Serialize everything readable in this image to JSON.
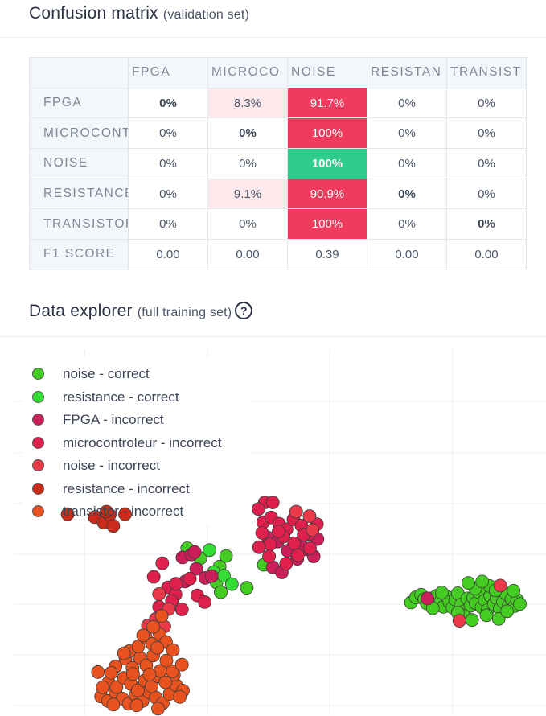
{
  "confusion_matrix": {
    "title": "Confusion matrix",
    "subtitle": "(validation set)",
    "columns": [
      "FPGA",
      "MICROCO",
      "NOISE",
      "RESISTAN",
      "TRANSIST"
    ],
    "rows": [
      {
        "label": "FPGA",
        "cells": [
          "0%",
          "8.3%",
          "91.7%",
          "0%",
          "0%"
        ]
      },
      {
        "label": "MICROCONT",
        "cells": [
          "0%",
          "0%",
          "100%",
          "0%",
          "0%"
        ]
      },
      {
        "label": "NOISE",
        "cells": [
          "0%",
          "0%",
          "100%",
          "0%",
          "0%"
        ]
      },
      {
        "label": "RESISTANCE",
        "cells": [
          "0%",
          "9.1%",
          "90.9%",
          "0%",
          "0%"
        ]
      },
      {
        "label": "TRANSISTOR",
        "cells": [
          "0%",
          "0%",
          "100%",
          "0%",
          "0%"
        ]
      }
    ],
    "f1_label": "F1 SCORE",
    "f1_scores": [
      "0.00",
      "0.00",
      "0.39",
      "0.00",
      "0.00"
    ],
    "colors": {
      "highlight_red": "#ee3b5e",
      "highlight_green": "#2ecc8a",
      "light_red": "#fde8ec",
      "header_bg": "#f3f6fa"
    }
  },
  "data_explorer": {
    "title": "Data explorer",
    "subtitle": "(full training set)",
    "help_icon": "question-circle-icon",
    "help_glyph": "?",
    "legend": [
      {
        "label": "noise - correct",
        "color": "#44cc22"
      },
      {
        "label": "resistance - correct",
        "color": "#33dd33"
      },
      {
        "label": "FPGA - incorrect",
        "color": "#cc1e5a"
      },
      {
        "label": "microcontroleur - incorrect",
        "color": "#e0204c"
      },
      {
        "label": "noise - incorrect",
        "color": "#ea3a4a"
      },
      {
        "label": "resistance - incorrect",
        "color": "#cc2a1a"
      },
      {
        "label": "transistor - incorrect",
        "color": "#e8521f"
      }
    ]
  },
  "chart_data": {
    "type": "scatter",
    "title": "",
    "xlabel": "",
    "ylabel": "",
    "grid": true,
    "legend_placement": "top-left",
    "xlim": [
      0,
      100
    ],
    "ylim": [
      0,
      100
    ],
    "series": [
      {
        "name": "noise - correct",
        "color": "#44cc22",
        "points": [
          [
            74.6,
            30.8
          ],
          [
            75.5,
            32.2
          ],
          [
            76.5,
            32.9
          ],
          [
            77.1,
            31.7
          ],
          [
            77.6,
            30.5
          ],
          [
            78.3,
            31.9
          ],
          [
            78.9,
            30.2
          ],
          [
            79.4,
            32.6
          ],
          [
            80.2,
            31.1
          ],
          [
            80.7,
            29.6
          ],
          [
            81.3,
            32.4
          ],
          [
            81.8,
            30.9
          ],
          [
            82.4,
            29.4
          ],
          [
            82.9,
            31.6
          ],
          [
            83.4,
            33.3
          ],
          [
            84.0,
            30.2
          ],
          [
            84.6,
            28.4
          ],
          [
            85.2,
            31.9
          ],
          [
            85.8,
            29.9
          ],
          [
            86.3,
            32.1
          ],
          [
            86.8,
            30.6
          ],
          [
            87.4,
            33.6
          ],
          [
            87.9,
            29.5
          ],
          [
            88.5,
            31.4
          ],
          [
            89.0,
            28.7
          ],
          [
            89.5,
            32.6
          ],
          [
            90.2,
            30.3
          ],
          [
            90.7,
            32.0
          ],
          [
            91.3,
            29.1
          ],
          [
            91.9,
            31.0
          ],
          [
            92.4,
            33.3
          ],
          [
            93.0,
            30.0
          ],
          [
            93.5,
            31.7
          ],
          [
            94.1,
            29.8
          ],
          [
            94.6,
            31.5
          ],
          [
            95.1,
            30.4
          ],
          [
            84.5,
            27.2
          ],
          [
            86.1,
            26.0
          ],
          [
            88.8,
            27.3
          ],
          [
            91.1,
            26.3
          ],
          [
            92.7,
            28.4
          ],
          [
            86.7,
            34.6
          ],
          [
            89.4,
            35.3
          ],
          [
            88.0,
            36.5
          ],
          [
            90.5,
            34.1
          ],
          [
            83.4,
            28.0
          ],
          [
            85.4,
            36.1
          ],
          [
            93.9,
            34.0
          ],
          [
            80.4,
            33.5
          ],
          [
            78.7,
            29.2
          ],
          [
            32.5,
            45.6
          ],
          [
            35.0,
            42.9
          ],
          [
            38.0,
            36.3
          ],
          [
            38.6,
            40.6
          ],
          [
            39.8,
            43.5
          ],
          [
            43.7,
            34.8
          ],
          [
            38.8,
            33.6
          ],
          [
            46.9,
            41.1
          ]
        ]
      },
      {
        "name": "resistance - correct",
        "color": "#33dd33",
        "points": [
          [
            36.7,
            45.1
          ],
          [
            37.5,
            39.1
          ],
          [
            39.4,
            38.1
          ],
          [
            40.9,
            35.8
          ]
        ]
      },
      {
        "name": "FPGA - incorrect",
        "color": "#cc1e5a",
        "points": [
          [
            31.6,
            43.1
          ],
          [
            33.3,
            43.9
          ],
          [
            34.2,
            40.0
          ],
          [
            35.9,
            37.5
          ],
          [
            37.1,
            38.0
          ],
          [
            33.9,
            44.6
          ],
          [
            32.1,
            36.5
          ],
          [
            47.7,
            48.5
          ],
          [
            49.5,
            47.4
          ],
          [
            51.4,
            44.9
          ],
          [
            53.2,
            42.7
          ],
          [
            55.0,
            45.3
          ],
          [
            48.6,
            40.4
          ],
          [
            50.3,
            39.0
          ],
          [
            54.1,
            46.1
          ],
          [
            56.3,
            43.4
          ],
          [
            57.0,
            48.1
          ],
          [
            77.7,
            31.9
          ]
        ]
      },
      {
        "name": "microcontroleur - incorrect",
        "color": "#e0204c",
        "points": [
          [
            26.2,
            37.8
          ],
          [
            27.8,
            41.5
          ],
          [
            28.9,
            34.9
          ],
          [
            30.3,
            33.0
          ],
          [
            34.4,
            32.7
          ],
          [
            35.8,
            30.9
          ],
          [
            31.5,
            28.9
          ],
          [
            29.6,
            31.2
          ],
          [
            27.2,
            29.6
          ],
          [
            33.0,
            37.3
          ],
          [
            30.4,
            35.9
          ],
          [
            46.8,
            52.7
          ],
          [
            48.3,
            54.0
          ],
          [
            49.8,
            52.3
          ],
          [
            51.2,
            50.8
          ],
          [
            52.5,
            53.5
          ],
          [
            54.0,
            51.8
          ],
          [
            55.4,
            49.5
          ],
          [
            56.9,
            52.2
          ],
          [
            46.6,
            49.8
          ],
          [
            48.1,
            46.7
          ],
          [
            50.6,
            48.8
          ],
          [
            52.6,
            47.0
          ],
          [
            54.4,
            49.3
          ],
          [
            55.6,
            45.6
          ],
          [
            53.3,
            43.7
          ],
          [
            51.1,
            41.4
          ],
          [
            47.9,
            43.4
          ],
          [
            46.0,
            45.9
          ],
          [
            49.7,
            50.2
          ],
          [
            47.1,
            58.1
          ],
          [
            48.6,
            58.1
          ],
          [
            45.9,
            56.3
          ]
        ]
      },
      {
        "name": "noise - incorrect",
        "color": "#ea3a4a",
        "points": [
          [
            25.1,
            24.5
          ],
          [
            26.6,
            26.3
          ],
          [
            28.2,
            24.2
          ],
          [
            29.0,
            29.0
          ],
          [
            27.2,
            33.1
          ],
          [
            91.4,
            35.4
          ],
          [
            83.7,
            25.8
          ],
          [
            53.0,
            55.6
          ],
          [
            55.5,
            54.4
          ],
          [
            56.1,
            50.6
          ]
        ]
      },
      {
        "name": "resistance - incorrect",
        "color": "#cc2a1a",
        "points": [
          [
            10.0,
            54.9
          ],
          [
            15.1,
            54.1
          ],
          [
            16.8,
            52.6
          ],
          [
            17.9,
            54.7
          ],
          [
            18.6,
            51.7
          ],
          [
            20.8,
            54.9
          ],
          [
            17.3,
            55.6
          ]
        ]
      },
      {
        "name": "transistor - incorrect",
        "color": "#e8521f",
        "points": [
          [
            16.3,
            5.1
          ],
          [
            17.6,
            3.9
          ],
          [
            19.0,
            6.3
          ],
          [
            20.3,
            4.5
          ],
          [
            21.5,
            3.1
          ],
          [
            22.8,
            5.5
          ],
          [
            24.1,
            3.9
          ],
          [
            25.3,
            6.3
          ],
          [
            26.6,
            4.8
          ],
          [
            27.9,
            3.3
          ],
          [
            29.2,
            5.8
          ],
          [
            30.4,
            8.2
          ],
          [
            31.7,
            6.7
          ],
          [
            30.0,
            11.0
          ],
          [
            17.7,
            9.0
          ],
          [
            19.2,
            7.7
          ],
          [
            20.6,
            10.2
          ],
          [
            21.9,
            8.5
          ],
          [
            23.2,
            6.8
          ],
          [
            24.5,
            9.5
          ],
          [
            25.8,
            7.9
          ],
          [
            27.1,
            10.6
          ],
          [
            28.4,
            9.0
          ],
          [
            29.7,
            12.0
          ],
          [
            19.0,
            13.3
          ],
          [
            20.9,
            15.4
          ],
          [
            22.2,
            12.9
          ],
          [
            23.6,
            15.7
          ],
          [
            24.8,
            13.6
          ],
          [
            26.1,
            16.3
          ],
          [
            27.4,
            12.1
          ],
          [
            28.6,
            14.9
          ],
          [
            21.6,
            17.5
          ],
          [
            23.3,
            18.8
          ],
          [
            24.7,
            21.2
          ],
          [
            25.9,
            19.5
          ],
          [
            27.3,
            22.1
          ],
          [
            28.5,
            20.0
          ],
          [
            26.1,
            24.1
          ],
          [
            27.7,
            27.1
          ],
          [
            22.3,
            11.3
          ],
          [
            25.4,
            11.1
          ],
          [
            18.2,
            11.6
          ],
          [
            16.6,
            7.6
          ],
          [
            15.7,
            11.8
          ],
          [
            18.6,
            2.9
          ],
          [
            29.8,
            17.8
          ],
          [
            26.9,
            18.4
          ],
          [
            31.5,
            13.8
          ],
          [
            23.0,
            2.7
          ],
          [
            27.0,
            1.8
          ],
          [
            31.1,
            5.0
          ],
          [
            20.6,
            16.9
          ],
          [
            24.2,
            21.8
          ]
        ]
      }
    ]
  }
}
